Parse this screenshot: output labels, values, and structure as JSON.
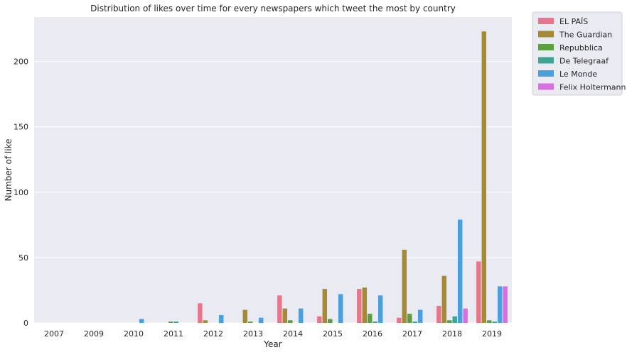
{
  "chart_data": {
    "type": "bar",
    "title": "Distribution of likes over time for every newspapers which tweet the most by country",
    "xlabel": "Year",
    "ylabel": "Number of like",
    "categories": [
      "2007",
      "2009",
      "2010",
      "2011",
      "2012",
      "2013",
      "2014",
      "2015",
      "2016",
      "2017",
      "2018",
      "2019"
    ],
    "ylim": [
      0,
      234
    ],
    "yticks": [
      0,
      50,
      100,
      150,
      200
    ],
    "grid": true,
    "legend_position": "outside-top-right",
    "series": [
      {
        "name": "EL PAÍS",
        "color": "#e8768b",
        "values": [
          0,
          0,
          0,
          0,
          15,
          0,
          21,
          5,
          26,
          4,
          13,
          47
        ]
      },
      {
        "name": "The Guardian",
        "color": "#a58a36",
        "values": [
          0,
          0,
          0,
          0,
          2,
          10,
          11,
          26,
          27,
          56,
          36,
          223
        ]
      },
      {
        "name": "Repubblica",
        "color": "#5aa040",
        "values": [
          0,
          0,
          0,
          1,
          0,
          1,
          2,
          3,
          7,
          7,
          2,
          2
        ]
      },
      {
        "name": "De Telegraaf",
        "color": "#3ea594",
        "values": [
          0,
          0,
          0,
          1,
          0,
          0,
          0,
          0,
          1,
          1,
          5,
          1
        ]
      },
      {
        "name": "Le Monde",
        "color": "#4aa0df",
        "values": [
          0,
          0,
          3,
          0,
          6,
          4,
          11,
          22,
          21,
          10,
          79,
          28
        ]
      },
      {
        "name": "Felix Holtermann",
        "color": "#d96ee0",
        "values": [
          0,
          0,
          0,
          0,
          0,
          0,
          0,
          0,
          0,
          0,
          11,
          28
        ]
      }
    ]
  }
}
